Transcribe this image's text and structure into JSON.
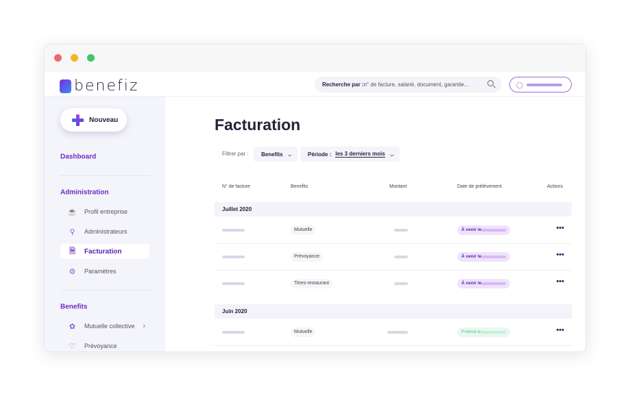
{
  "window": {
    "dots": [
      "#ee6a6a",
      "#f5b428",
      "#3fc76a"
    ]
  },
  "header": {
    "logo": "benefiz",
    "search_label": "Recherche par :",
    "search_placeholder": " n° de facture, salarié, document, garantie..."
  },
  "sidebar": {
    "new_button": "Nouveau",
    "dashboard": "Dashboard",
    "admin_title": "Administration",
    "admin_items": [
      {
        "label": "Profil entreprise",
        "icon": "cup-icon"
      },
      {
        "label": "Administrateurs",
        "icon": "key-icon"
      },
      {
        "label": "Facturation",
        "icon": "invoice-icon",
        "active": true
      },
      {
        "label": "Paramètres",
        "icon": "gear-icon"
      }
    ],
    "benefits_title": "Benefits",
    "benefits_items": [
      {
        "label": "Mutuelle collective",
        "icon": "flower-icon"
      },
      {
        "label": "Prévoyance",
        "icon": "heart-icon"
      }
    ]
  },
  "main": {
    "title": "Facturation",
    "filter_label": "Filtrer par :",
    "filter_benefits": "Benefits",
    "filter_period_label": "Période :",
    "filter_period_value": "les 3 derniers mois",
    "columns": [
      "N° de facture",
      "Benefits",
      "Montant",
      "Date de prélèvement",
      "Actions"
    ],
    "groups": [
      {
        "label": "Juillet 2020",
        "rows": [
          {
            "benefit": "Mutuelle",
            "status": "À venir le"
          },
          {
            "benefit": "Prévoyance",
            "status": "À venir le"
          },
          {
            "benefit": "Titres-restaurant",
            "status": "À venir le"
          }
        ]
      },
      {
        "label": "Juin 2020",
        "rows": [
          {
            "benefit": "Mutuelle",
            "status": "Prélevé le"
          }
        ]
      }
    ]
  },
  "colors": {
    "accent": "#6a2fc0",
    "upcoming_bg": "#efe3fb",
    "upcoming_text": "#5a22b0",
    "paid_bg": "#e8f8f0",
    "paid_text": "#4cc790"
  }
}
